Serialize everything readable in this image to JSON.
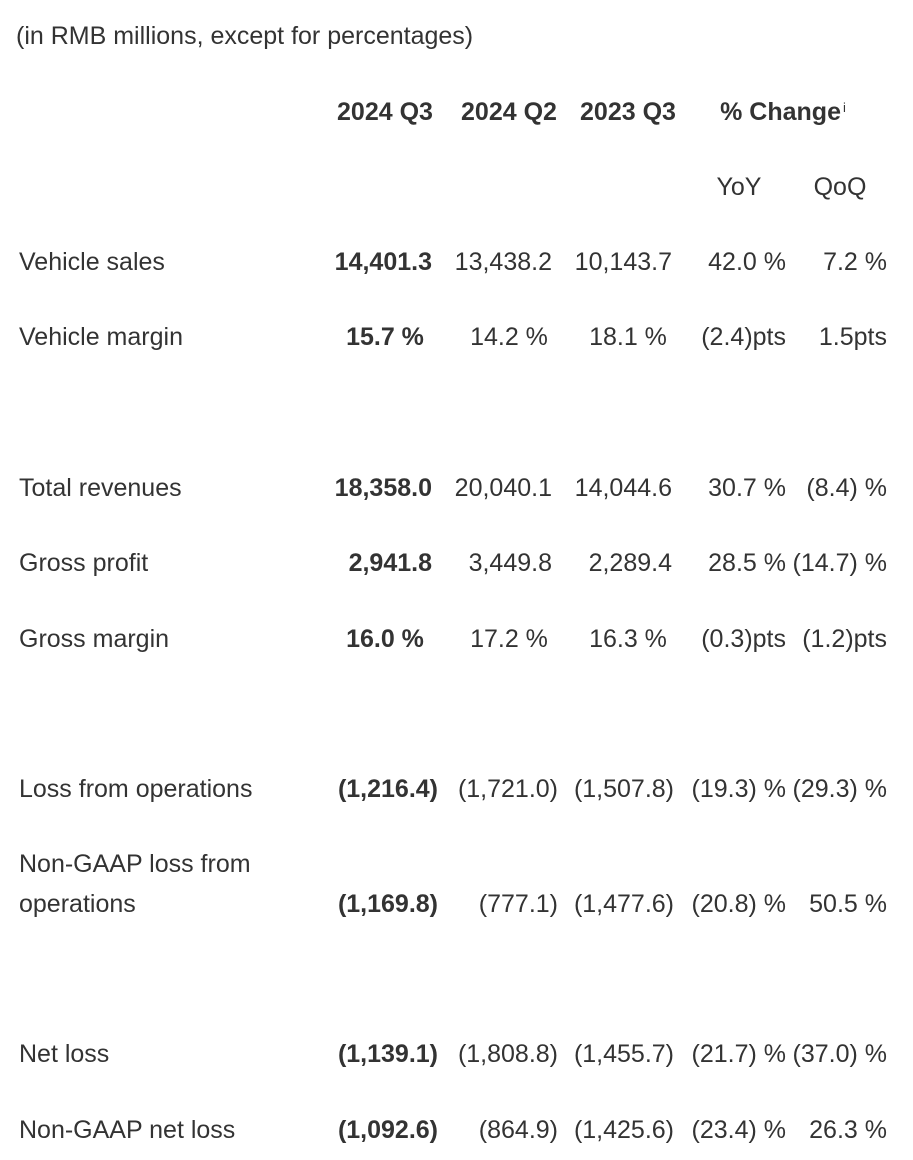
{
  "caption": "(in RMB millions, except for percentages)",
  "header": {
    "col1": "2024 Q3",
    "col2": "2024 Q2",
    "col3": "2023 Q3",
    "change": "% Change",
    "change_note": "i",
    "yoy": "YoY",
    "qoq": "QoQ"
  },
  "rows": [
    {
      "label": "Vehicle sales",
      "q3_2024": "14,401.3",
      "q2_2024": "13,438.2",
      "q3_2023": "10,143.7",
      "yoy": "42.0 %",
      "qoq": "7.2 %"
    },
    {
      "label": "Vehicle margin",
      "q3_2024": "15.7 %",
      "q2_2024": "14.2 %",
      "q3_2023": "18.1 %",
      "yoy": "(2.4)pts",
      "qoq": "1.5pts"
    },
    {
      "label": "Total revenues",
      "q3_2024": "18,358.0",
      "q2_2024": "20,040.1",
      "q3_2023": "14,044.6",
      "yoy": "30.7 %",
      "qoq": "(8.4) %"
    },
    {
      "label": "Gross profit",
      "q3_2024": "2,941.8",
      "q2_2024": "3,449.8",
      "q3_2023": "2,289.4",
      "yoy": "28.5 %",
      "qoq": "(14.7) %"
    },
    {
      "label": "Gross margin",
      "q3_2024": "16.0 %",
      "q2_2024": "17.2 %",
      "q3_2023": "16.3 %",
      "yoy": "(0.3)pts",
      "qoq": "(1.2)pts"
    },
    {
      "label": "Loss from operations",
      "q3_2024": "(1,216.4)",
      "q2_2024": "(1,721.0)",
      "q3_2023": "(1,507.8)",
      "yoy": "(19.3) %",
      "qoq": "(29.3) %"
    },
    {
      "label_line1": "Non-GAAP loss from",
      "label_line2": "operations",
      "q3_2024": "(1,169.8)",
      "q2_2024": "(777.1)",
      "q3_2023": "(1,477.6)",
      "yoy": "(20.8) %",
      "qoq": "50.5 %"
    },
    {
      "label": "Net loss",
      "q3_2024": "(1,139.1)",
      "q2_2024": "(1,808.8)",
      "q3_2023": "(1,455.7)",
      "yoy": "(21.7) %",
      "qoq": "(37.0) %"
    },
    {
      "label": "Non-GAAP net loss",
      "q3_2024": "(1,092.6)",
      "q2_2024": "(864.9)",
      "q3_2023": "(1,425.6)",
      "yoy": "(23.4) %",
      "qoq": "26.3 %"
    }
  ]
}
